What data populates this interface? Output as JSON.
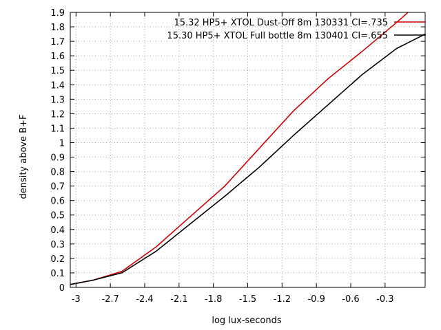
{
  "chart_data": {
    "type": "line",
    "title": "",
    "xlabel": "log lux-seconds",
    "ylabel": "density above B+F",
    "xlim": [
      -3.05,
      0.05
    ],
    "ylim": [
      0,
      1.9
    ],
    "x_ticks": [
      "-3",
      "-2.7",
      "-2.4",
      "-2.1",
      "-1.8",
      "-1.5",
      "-1.2",
      "-0.9",
      "-0.6",
      "-0.3"
    ],
    "x_tick_values": [
      -3,
      -2.7,
      -2.4,
      -2.1,
      -1.8,
      -1.5,
      -1.2,
      -0.9,
      -0.6,
      -0.3
    ],
    "y_ticks": [
      "0",
      "0.1",
      "0.2",
      "0.3",
      "0.4",
      "0.5",
      "0.6",
      "0.7",
      "0.8",
      "0.9",
      "1",
      "1.1",
      "1.2",
      "1.3",
      "1.4",
      "1.5",
      "1.6",
      "1.7",
      "1.8",
      "1.9"
    ],
    "y_tick_values": [
      0,
      0.1,
      0.2,
      0.3,
      0.4,
      0.5,
      0.6,
      0.7,
      0.8,
      0.9,
      1.0,
      1.1,
      1.2,
      1.3,
      1.4,
      1.5,
      1.6,
      1.7,
      1.8,
      1.9
    ],
    "grid": true,
    "legend_position": "top-right",
    "series": [
      {
        "name": "15.32 HP5+ XTOL Dust-Off 8m 130331 CI=.735",
        "color": "#cc0000",
        "x": [
          -3.05,
          -2.85,
          -2.6,
          -2.3,
          -2.0,
          -1.7,
          -1.4,
          -1.1,
          -0.8,
          -0.5,
          -0.2,
          -0.1
        ],
        "y": [
          0.02,
          0.05,
          0.11,
          0.28,
          0.49,
          0.7,
          0.96,
          1.22,
          1.44,
          1.63,
          1.83,
          1.9
        ]
      },
      {
        "name": "15.30 HP5+ XTOL Full bottle 8m 130401 CI=.655",
        "color": "#000000",
        "x": [
          -3.05,
          -2.85,
          -2.6,
          -2.3,
          -2.0,
          -1.7,
          -1.4,
          -1.1,
          -0.8,
          -0.5,
          -0.2,
          -0.1,
          0.05
        ],
        "y": [
          0.02,
          0.05,
          0.1,
          0.25,
          0.44,
          0.63,
          0.83,
          1.05,
          1.26,
          1.47,
          1.65,
          1.69,
          1.75
        ]
      }
    ]
  }
}
